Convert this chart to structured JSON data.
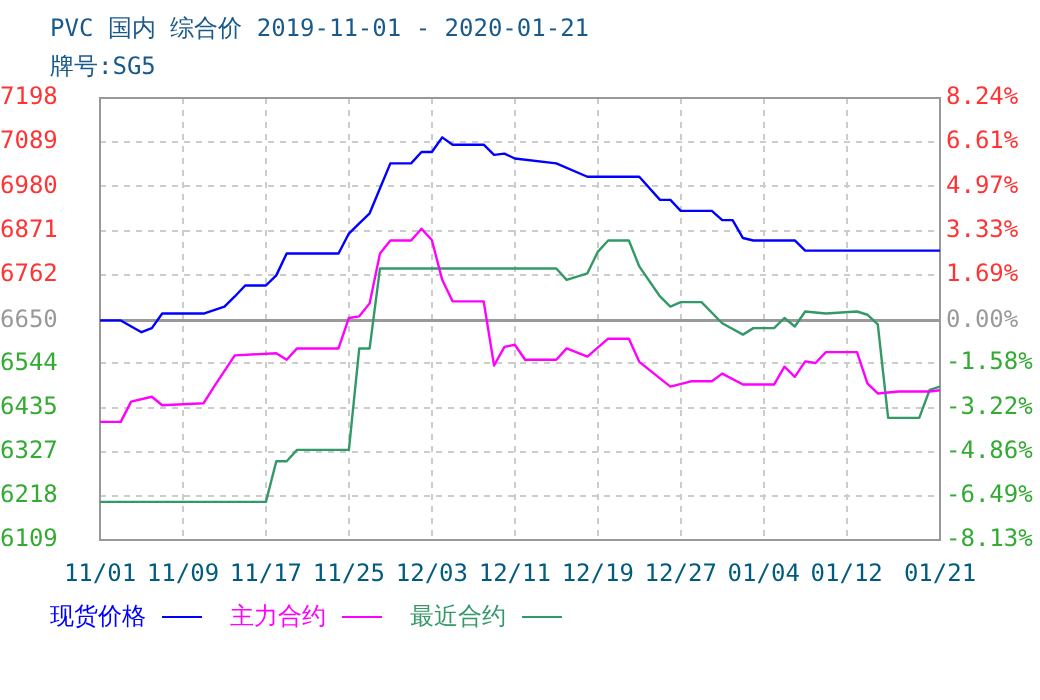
{
  "chart_data": {
    "type": "line",
    "title": "PVC 国内 综合价 2019-11-01 - 2020-01-21",
    "subtitle": "牌号:SG5",
    "xlim": [
      "2019-11-01",
      "2020-01-21"
    ],
    "xticks": [
      {
        "value": "2019-11-01",
        "label": "11/01"
      },
      {
        "value": "2019-11-09",
        "label": "11/09"
      },
      {
        "value": "2019-11-17",
        "label": "11/17"
      },
      {
        "value": "2019-11-25",
        "label": "11/25"
      },
      {
        "value": "2019-12-03",
        "label": "12/03"
      },
      {
        "value": "2019-12-11",
        "label": "12/11"
      },
      {
        "value": "2019-12-19",
        "label": "12/19"
      },
      {
        "value": "2019-12-27",
        "label": "12/27"
      },
      {
        "value": "2020-01-04",
        "label": "01/04"
      },
      {
        "value": "2020-01-12",
        "label": "01/12"
      },
      {
        "value": "2020-01-21",
        "label": "01/21"
      }
    ],
    "ylim": [
      6109,
      7198
    ],
    "yticks": [
      6109,
      6218,
      6327,
      6435,
      6544,
      6650,
      6762,
      6871,
      6980,
      7089,
      7198
    ],
    "y2lim": [
      -8.13,
      8.24
    ],
    "y2ticks": [
      {
        "value": -8.13,
        "label": "-8.13%"
      },
      {
        "value": -6.49,
        "label": "-6.49%"
      },
      {
        "value": -4.86,
        "label": "-4.86%"
      },
      {
        "value": -3.22,
        "label": "-3.22%"
      },
      {
        "value": -1.58,
        "label": "-1.58%"
      },
      {
        "value": 0,
        "label": "0.00%"
      },
      {
        "value": 1.69,
        "label": "1.69%"
      },
      {
        "value": 3.33,
        "label": "3.33%"
      },
      {
        "value": 4.97,
        "label": "4.97%"
      },
      {
        "value": 6.61,
        "label": "6.61%"
      },
      {
        "value": 8.24,
        "label": "8.24%"
      }
    ],
    "grid": true,
    "legend": "bottom",
    "marker": "none",
    "line_style": "solid",
    "ref_lines": [
      {
        "axis": "y",
        "value": 6650,
        "color": "#999999"
      }
    ],
    "series": [
      {
        "name": "现货价格",
        "color": "#0000ff",
        "x": [
          "2019-11-01",
          "2019-11-03",
          "2019-11-05",
          "2019-11-06",
          "2019-11-07",
          "2019-11-11",
          "2019-11-13",
          "2019-11-14",
          "2019-11-15",
          "2019-11-17",
          "2019-11-18",
          "2019-11-19",
          "2019-11-24",
          "2019-11-25",
          "2019-11-26",
          "2019-11-27",
          "2019-11-29",
          "2019-12-01",
          "2019-12-02",
          "2019-12-03",
          "2019-12-04",
          "2019-12-05",
          "2019-12-08",
          "2019-12-09",
          "2019-12-10",
          "2019-12-11",
          "2019-12-15",
          "2019-12-18",
          "2019-12-23",
          "2019-12-25",
          "2019-12-26",
          "2019-12-27",
          "2019-12-30",
          "2019-12-31",
          "2020-01-01",
          "2020-01-02",
          "2020-01-03",
          "2020-01-07",
          "2020-01-08",
          "2020-01-21"
        ],
        "values": [
          6650,
          6650,
          6621,
          6631,
          6667,
          6667,
          6684,
          6709,
          6736,
          6736,
          6761,
          6815,
          6815,
          6864,
          6889,
          6914,
          7037,
          7037,
          7065,
          7065,
          7101,
          7083,
          7083,
          7058,
          7061,
          7049,
          7037,
          7004,
          7004,
          6947,
          6947,
          6920,
          6920,
          6897,
          6897,
          6853,
          6847,
          6847,
          6822,
          6822
        ]
      },
      {
        "name": "主力合约",
        "color": "#ff00ff",
        "x": [
          "2019-11-01",
          "2019-11-03",
          "2019-11-04",
          "2019-11-06",
          "2019-11-07",
          "2019-11-11",
          "2019-11-12",
          "2019-11-14",
          "2019-11-18",
          "2019-11-19",
          "2019-11-20",
          "2019-11-24",
          "2019-11-25",
          "2019-11-26",
          "2019-11-27",
          "2019-11-28",
          "2019-11-29",
          "2019-12-01",
          "2019-12-02",
          "2019-12-03",
          "2019-12-04",
          "2019-12-05",
          "2019-12-08",
          "2019-12-09",
          "2019-12-10",
          "2019-12-11",
          "2019-12-12",
          "2019-12-15",
          "2019-12-16",
          "2019-12-18",
          "2019-12-20",
          "2019-12-22",
          "2019-12-23",
          "2019-12-26",
          "2019-12-28",
          "2019-12-30",
          "2019-12-31",
          "2020-01-02",
          "2020-01-05",
          "2020-01-06",
          "2020-01-07",
          "2020-01-08",
          "2020-01-09",
          "2020-01-10",
          "2020-01-13",
          "2020-01-14",
          "2020-01-15",
          "2020-01-17",
          "2020-01-20",
          "2020-01-21"
        ],
        "values": [
          6400,
          6400,
          6450,
          6462,
          6441,
          6446,
          6487,
          6564,
          6569,
          6553,
          6581,
          6581,
          6656,
          6660,
          6692,
          6815,
          6847,
          6847,
          6876,
          6848,
          6750,
          6697,
          6697,
          6539,
          6585,
          6590,
          6553,
          6553,
          6581,
          6561,
          6605,
          6605,
          6548,
          6487,
          6500,
          6500,
          6519,
          6492,
          6492,
          6536,
          6511,
          6549,
          6545,
          6572,
          6572,
          6495,
          6470,
          6475,
          6475,
          6478
        ]
      },
      {
        "name": "最近合约",
        "color": "#339966",
        "x": [
          "2019-11-01",
          "2019-11-17",
          "2019-11-18",
          "2019-11-19",
          "2019-11-20",
          "2019-11-25",
          "2019-11-26",
          "2019-11-27",
          "2019-11-28",
          "2019-12-15",
          "2019-12-16",
          "2019-12-18",
          "2019-12-19",
          "2019-12-20",
          "2019-12-22",
          "2019-12-23",
          "2019-12-25",
          "2019-12-26",
          "2019-12-27",
          "2019-12-29",
          "2019-12-31",
          "2020-01-02",
          "2020-01-03",
          "2020-01-05",
          "2020-01-06",
          "2020-01-07",
          "2020-01-08",
          "2020-01-10",
          "2020-01-13",
          "2020-01-14",
          "2020-01-15",
          "2020-01-16",
          "2020-01-19",
          "2020-01-20",
          "2020-01-21"
        ],
        "values": [
          6203,
          6203,
          6303,
          6303,
          6331,
          6331,
          6581,
          6581,
          6778,
          6778,
          6750,
          6766,
          6819,
          6847,
          6847,
          6783,
          6709,
          6684,
          6695,
          6695,
          6643,
          6615,
          6631,
          6631,
          6656,
          6635,
          6672,
          6667,
          6672,
          6664,
          6640,
          6410,
          6410,
          6479,
          6487
        ]
      }
    ]
  }
}
